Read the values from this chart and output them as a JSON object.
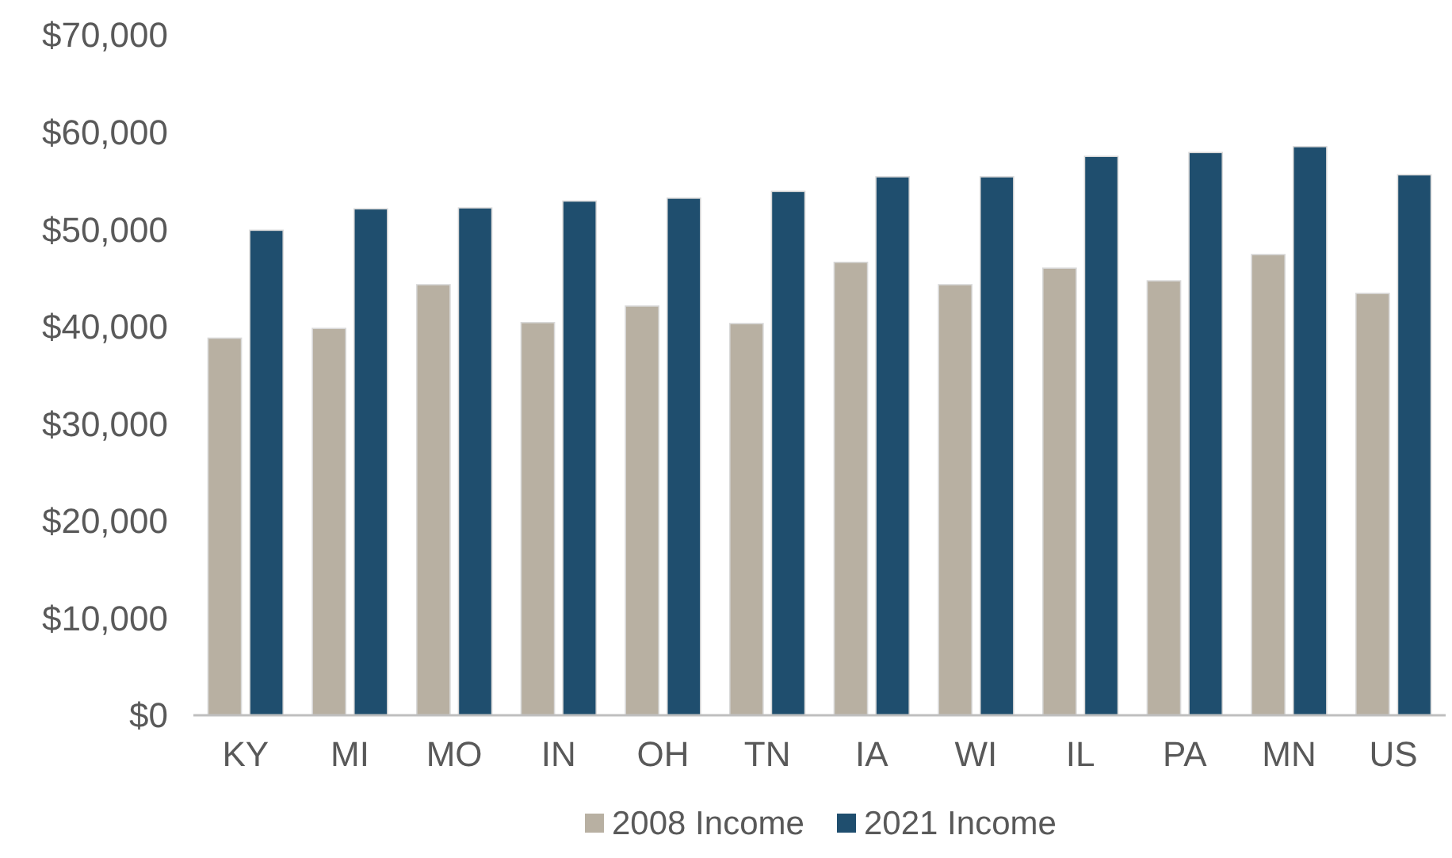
{
  "chart_data": {
    "type": "bar",
    "categories": [
      "KY",
      "MI",
      "MO",
      "IN",
      "OH",
      "TN",
      "IA",
      "WI",
      "IL",
      "PA",
      "MN",
      "US"
    ],
    "series": [
      {
        "name": "2008 Income",
        "color": "#b8b0a2",
        "values": [
          38800,
          39800,
          44300,
          40400,
          42100,
          40300,
          46600,
          44300,
          46000,
          44700,
          47400,
          43400
        ]
      },
      {
        "name": "2021 Income",
        "color": "#1f4e6e",
        "values": [
          49900,
          52100,
          52200,
          52900,
          53200,
          53900,
          55400,
          55400,
          57500,
          57900,
          58500,
          55600
        ]
      }
    ],
    "ylim": [
      0,
      70000
    ],
    "yticks": [
      {
        "value": 0,
        "label": "$0"
      },
      {
        "value": 10000,
        "label": "$10,000"
      },
      {
        "value": 20000,
        "label": "$20,000"
      },
      {
        "value": 30000,
        "label": "$30,000"
      },
      {
        "value": 40000,
        "label": "$40,000"
      },
      {
        "value": 50000,
        "label": "$50,000"
      },
      {
        "value": 60000,
        "label": "$60,000"
      },
      {
        "value": 70000,
        "label": "$70,000"
      }
    ],
    "grid": false,
    "legend": "bottom"
  }
}
